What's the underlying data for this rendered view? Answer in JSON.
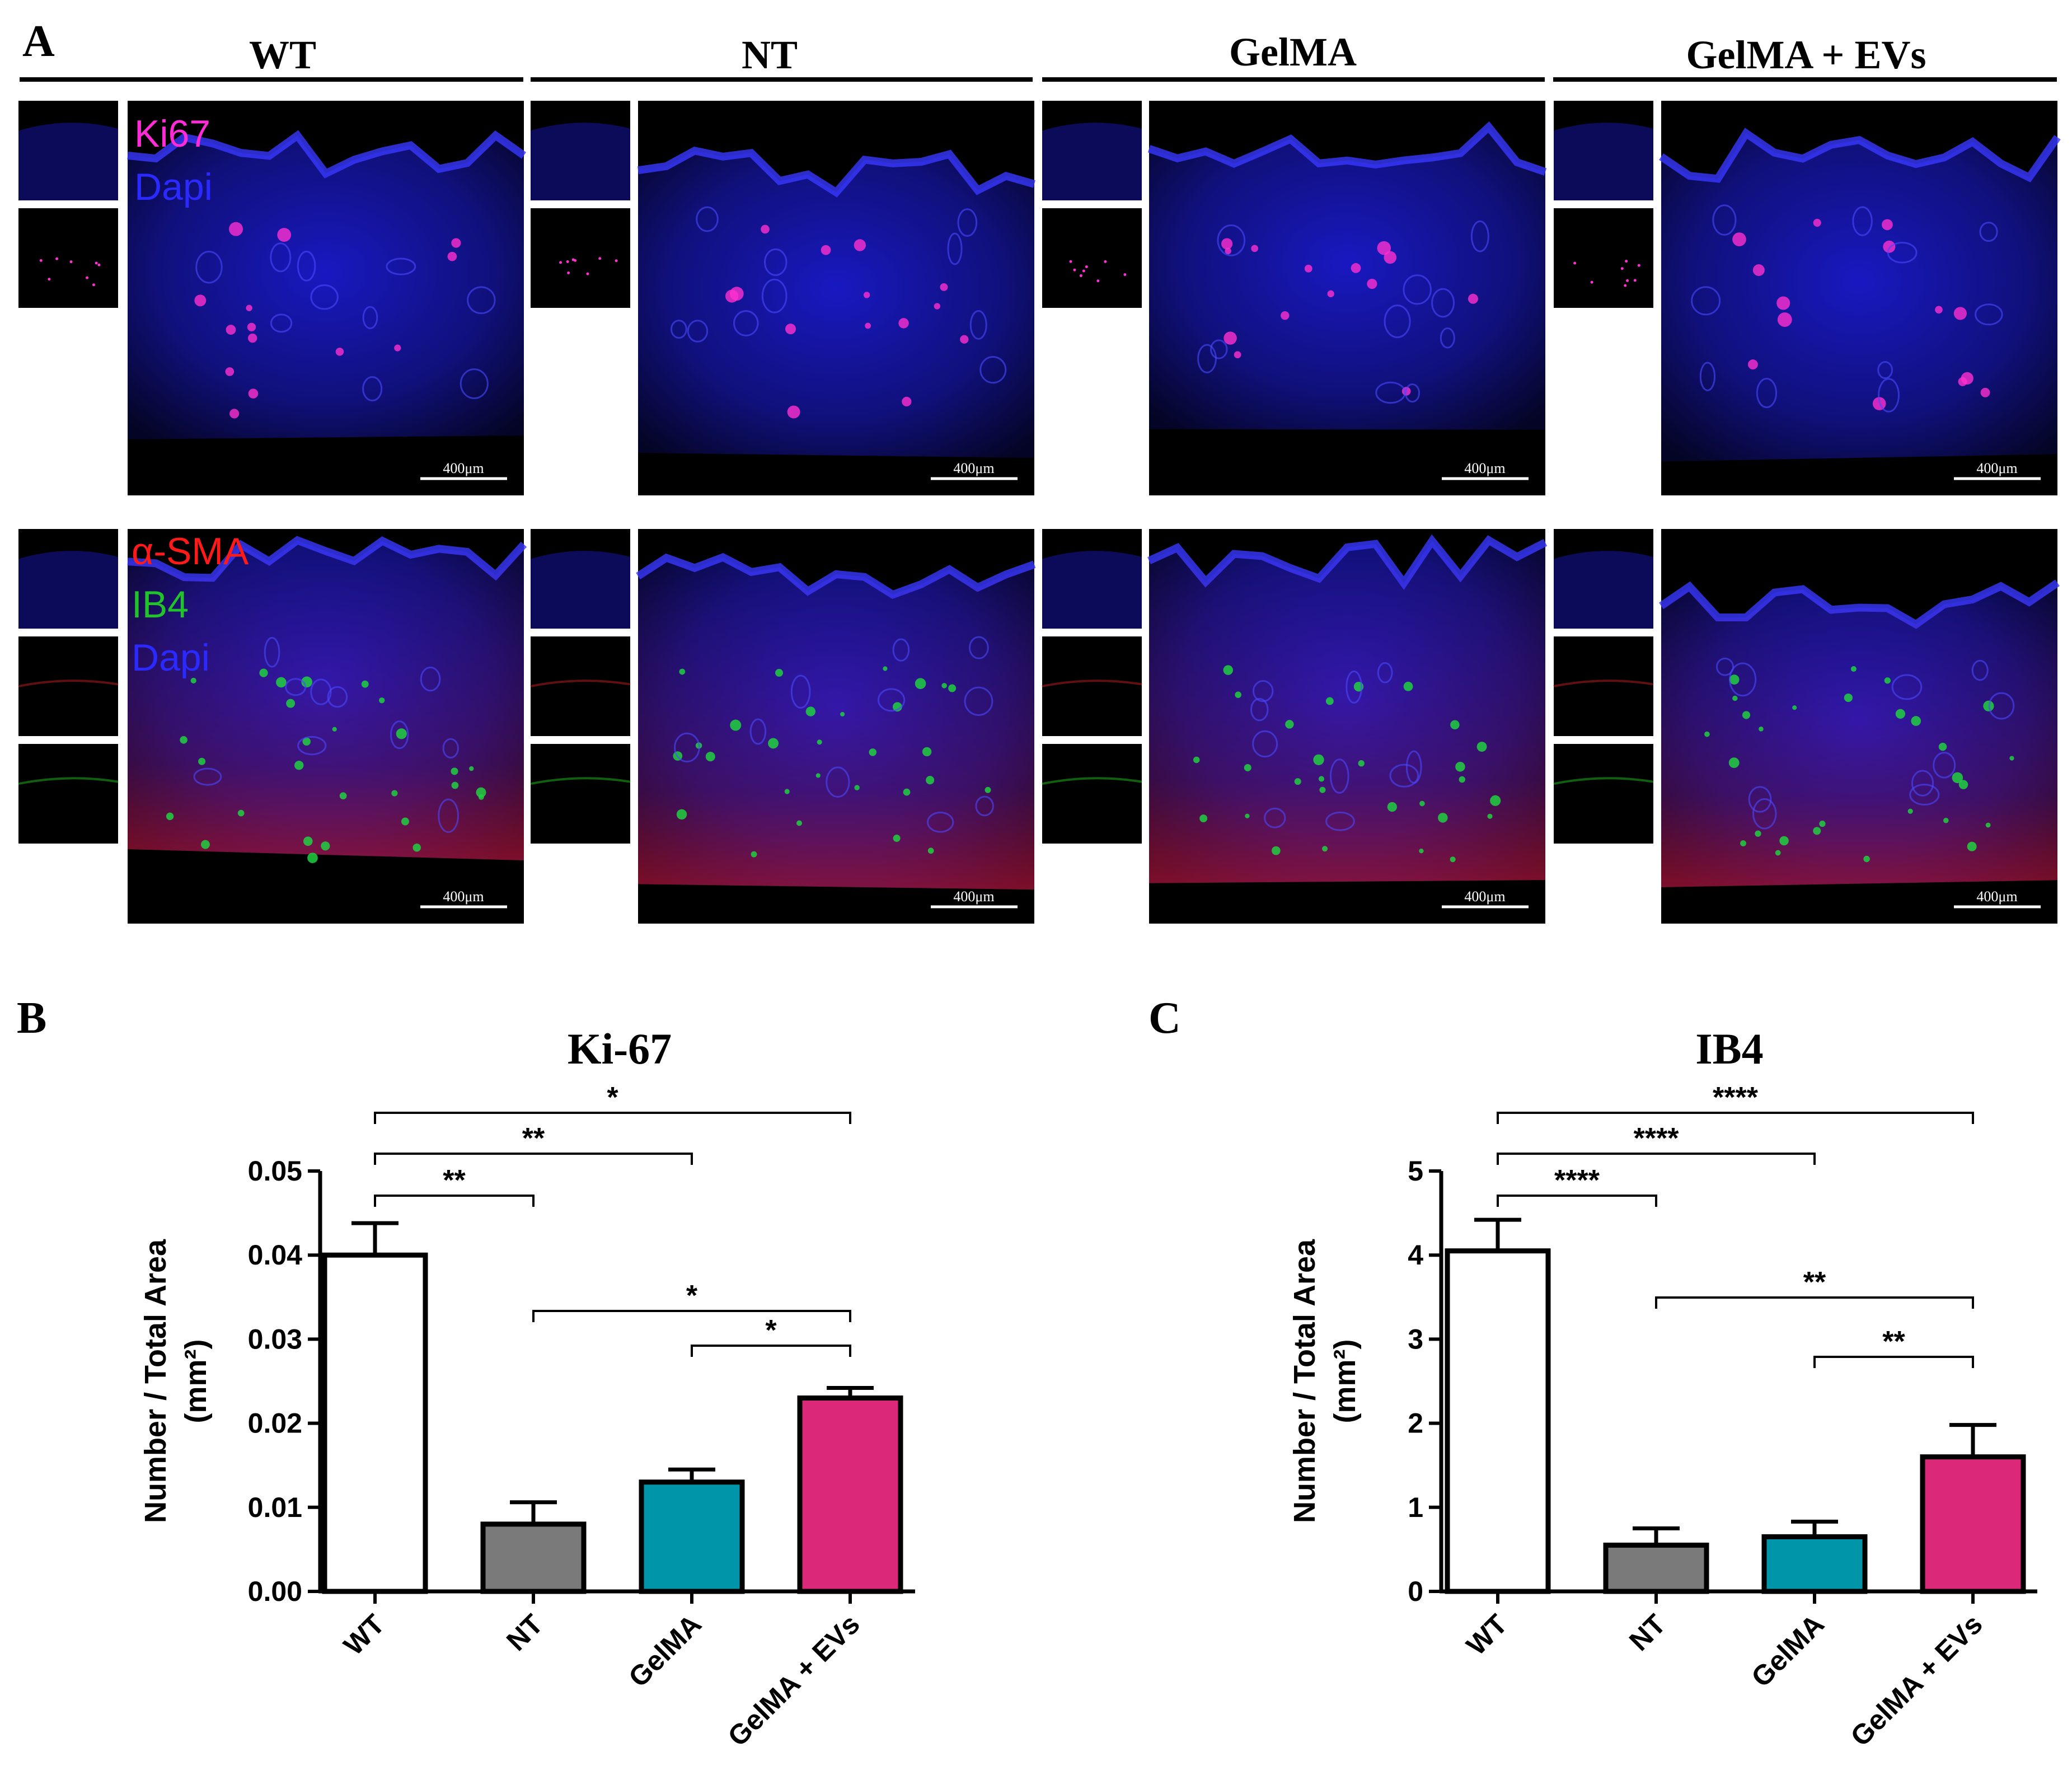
{
  "panel_labels": {
    "a": "A",
    "b": "B",
    "c": "C"
  },
  "group_headers": [
    "WT",
    "NT",
    "GelMA",
    "GelMA + EVs"
  ],
  "legend_row1": [
    {
      "text": "Ki67",
      "color": "#ff2bd6"
    },
    {
      "text": "Dapi",
      "color": "#2a2aff"
    }
  ],
  "legend_row2": [
    {
      "text": "α-SMA",
      "color": "#ff1a1a"
    },
    {
      "text": "IB4",
      "color": "#22c22a"
    },
    {
      "text": "Dapi",
      "color": "#2a2aff"
    }
  ],
  "scale_bar_label": "400μm",
  "colors": {
    "wt": "#ffffff",
    "nt": "#7a7a7a",
    "gelma": "#0095a8",
    "gelma_evs": "#dc2878",
    "dapi": "#1a1ad0",
    "ki67": "#ff30d0",
    "sma": "#e01818",
    "ib4": "#20d040"
  },
  "chart_data": [
    {
      "id": "ki67",
      "type": "bar",
      "title": "Ki-67",
      "ylabel": "Number / Total Area",
      "ylabel_unit": "(mm²)",
      "categories": [
        "WT",
        "NT",
        "GelMA",
        "GelMA + EVs"
      ],
      "values": [
        0.04,
        0.008,
        0.013,
        0.023
      ],
      "errors": [
        0.0038,
        0.0026,
        0.0015,
        0.0012
      ],
      "ylim": [
        0,
        0.05
      ],
      "yticks": [
        0.0,
        0.01,
        0.02,
        0.03,
        0.04,
        0.05
      ],
      "ytick_labels": [
        "0.00",
        "0.01",
        "0.02",
        "0.03",
        "0.04",
        "0.05"
      ],
      "significance": [
        {
          "from": 0,
          "to": 3,
          "label": "*"
        },
        {
          "from": 0,
          "to": 2,
          "label": "**"
        },
        {
          "from": 0,
          "to": 1,
          "label": "**"
        },
        {
          "from": 1,
          "to": 3,
          "label": "*"
        },
        {
          "from": 2,
          "to": 3,
          "label": "*"
        }
      ]
    },
    {
      "id": "ib4",
      "type": "bar",
      "title": "IB4",
      "ylabel": "Number / Total Area",
      "ylabel_unit": "(mm²)",
      "categories": [
        "WT",
        "NT",
        "GelMA",
        "GelMA + EVs"
      ],
      "values": [
        4.05,
        0.55,
        0.65,
        1.6
      ],
      "errors": [
        0.37,
        0.2,
        0.18,
        0.38
      ],
      "ylim": [
        0,
        5
      ],
      "yticks": [
        0,
        1,
        2,
        3,
        4,
        5
      ],
      "ytick_labels": [
        "0",
        "1",
        "2",
        "3",
        "4",
        "5"
      ],
      "significance": [
        {
          "from": 0,
          "to": 3,
          "label": "****"
        },
        {
          "from": 0,
          "to": 2,
          "label": "****"
        },
        {
          "from": 0,
          "to": 1,
          "label": "****"
        },
        {
          "from": 1,
          "to": 3,
          "label": "**"
        },
        {
          "from": 2,
          "to": 3,
          "label": "**"
        }
      ]
    }
  ]
}
